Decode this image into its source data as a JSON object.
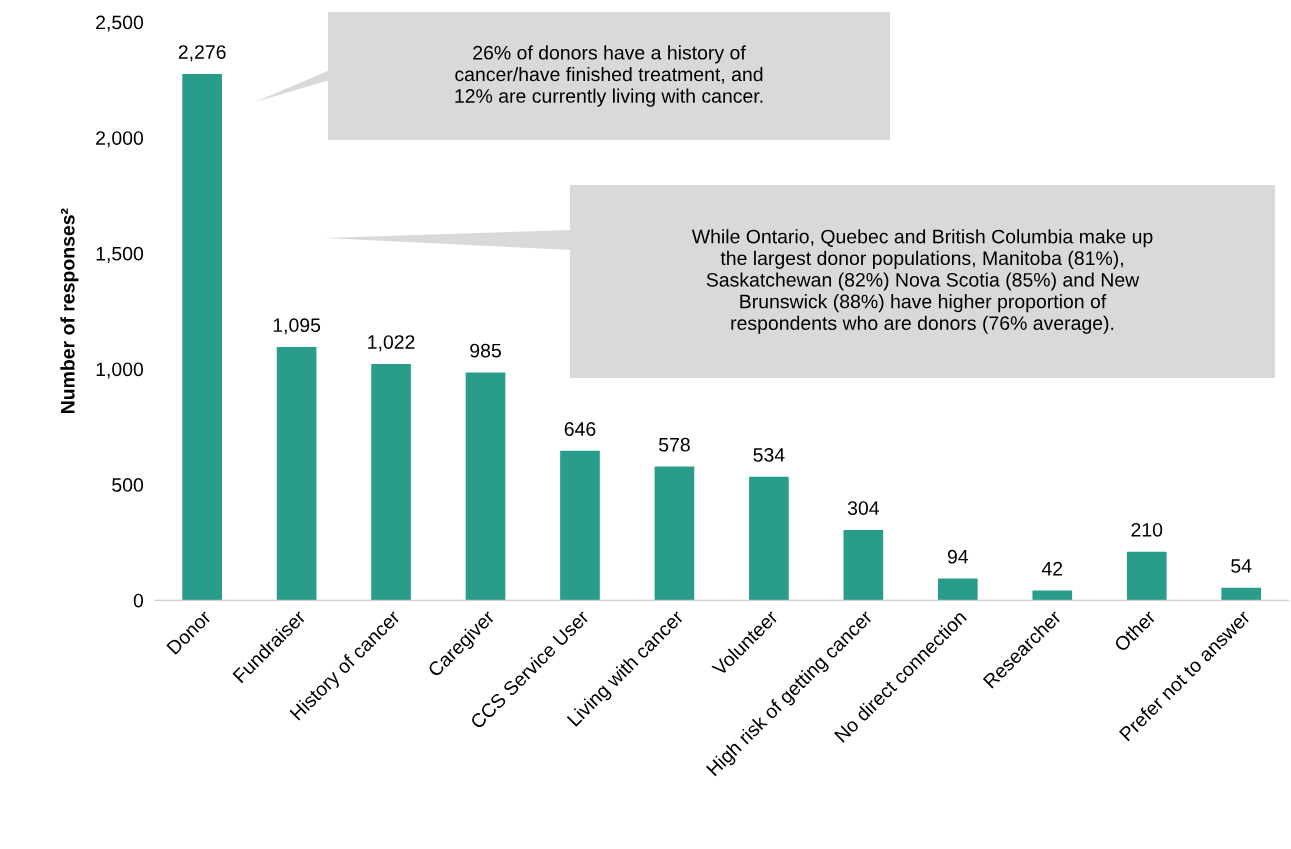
{
  "chart_data": {
    "type": "bar",
    "ylabel": "Number of responses²",
    "categories": [
      "Donor",
      "Fundraiser",
      "History of cancer",
      "Caregiver",
      "CCS Service User",
      "Living with cancer",
      "Volunteer",
      "High risk of getting cancer",
      "No direct connection",
      "Researcher",
      "Other",
      "Prefer not to answer"
    ],
    "values": [
      2276,
      1095,
      1022,
      985,
      646,
      578,
      534,
      304,
      94,
      42,
      210,
      54
    ],
    "value_labels": [
      "2,276",
      "1,095",
      "1,022",
      "985",
      "646",
      "578",
      "534",
      "304",
      "94",
      "42",
      "210",
      "54"
    ],
    "color": "#2a9d8a",
    "ylim": [
      0,
      2500
    ],
    "yticks": [
      {
        "value": 0,
        "label": "0"
      },
      {
        "value": 500,
        "label": "500"
      },
      {
        "value": 1000,
        "label": "1,000"
      },
      {
        "value": 1500,
        "label": "1,500"
      },
      {
        "value": 2000,
        "label": "2,000"
      },
      {
        "value": 2500,
        "label": "2,500"
      }
    ],
    "grid": false,
    "legend": false,
    "annotations": [
      "26% of donors have a history of\ncancer/have finished treatment, and\n12% are currently living with cancer.",
      "While Ontario, Quebec and British Columbia make up\nthe largest donor populations, Manitoba (81%),\nSaskatchewan (82%) Nova Scotia (85%) and New\nBrunswick (88%) have higher proportion of\nrespondents who are donors (76% average)."
    ]
  }
}
